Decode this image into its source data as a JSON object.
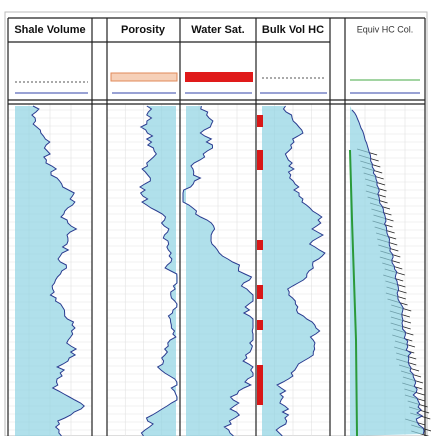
{
  "tracks": [
    {
      "title": "Shale Volume"
    },
    {
      "title": "Porosity"
    },
    {
      "title": "Water Sat."
    },
    {
      "title": "Bulk Vol HC"
    },
    {
      "title": "Equiv HC Col."
    }
  ]
}
